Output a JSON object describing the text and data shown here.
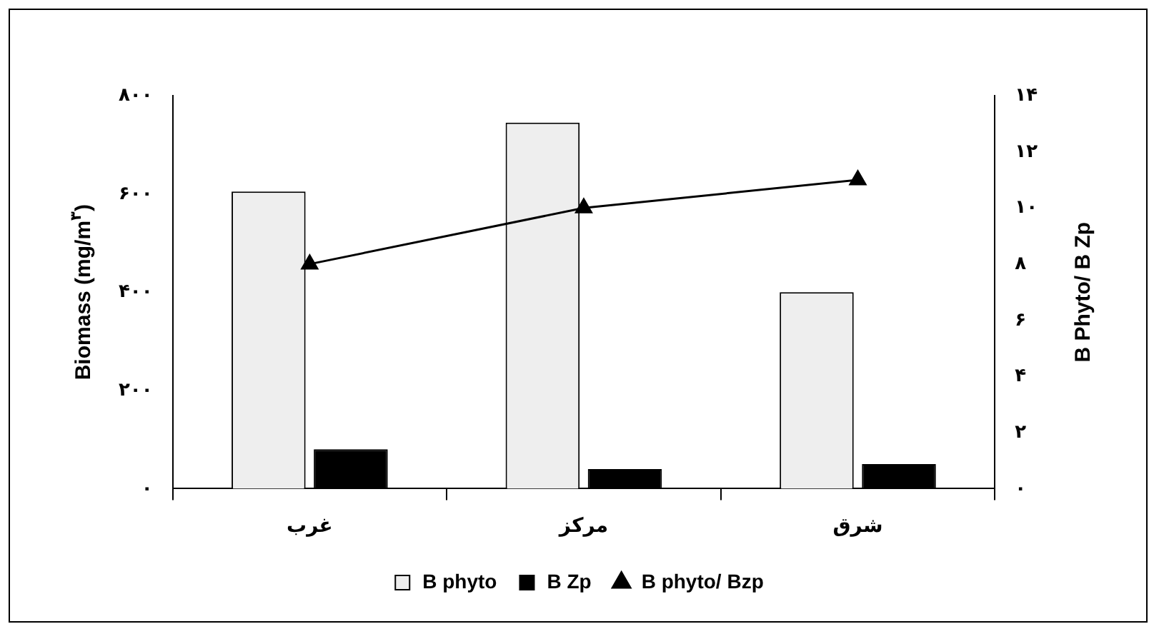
{
  "chart_data": {
    "type": "bar",
    "categories": [
      "غرب",
      "مرکز",
      "شرق"
    ],
    "series": [
      {
        "name": "B phyto",
        "color": "#eeeeee",
        "values": [
          605,
          745,
          400
        ]
      },
      {
        "name": "B Zp",
        "color": "#000000",
        "values": [
          80,
          40,
          50
        ]
      },
      {
        "name": "B phyto/ Bzp",
        "type": "line",
        "axis": "y2",
        "color": "#000000",
        "values": [
          8,
          10,
          11
        ]
      }
    ],
    "ylabel": "Biomass (mg/m$^{۳}$)",
    "y2label": "B Phyto/ B Zp",
    "ylim": [
      0,
      800
    ],
    "yticks": [
      {
        "value": 0,
        "label": "۰"
      },
      {
        "value": 200,
        "label": "۲۰۰"
      },
      {
        "value": 400,
        "label": "۴۰۰"
      },
      {
        "value": 600,
        "label": "۶۰۰"
      },
      {
        "value": 800,
        "label": "۸۰۰"
      }
    ],
    "y2lim": [
      0,
      14
    ],
    "y2ticks": [
      {
        "value": 0,
        "label": "۰"
      },
      {
        "value": 2,
        "label": "۲"
      },
      {
        "value": 4,
        "label": "۴"
      },
      {
        "value": 6,
        "label": "۶"
      },
      {
        "value": 8,
        "label": "۸"
      },
      {
        "value": 10,
        "label": "۱۰"
      },
      {
        "value": 12,
        "label": "۱۲"
      },
      {
        "value": 14,
        "label": "۱۴"
      }
    ],
    "marker": "triangle",
    "grid": false,
    "legend": "bottom"
  }
}
